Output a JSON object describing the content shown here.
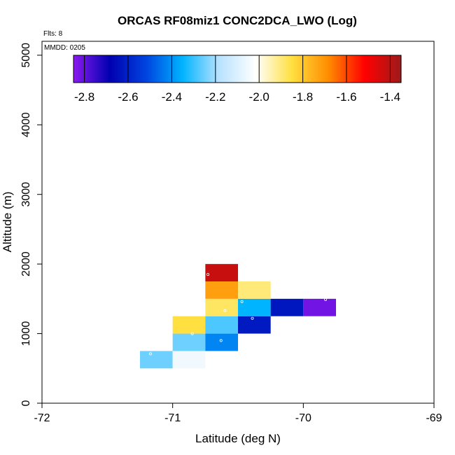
{
  "chart_data": {
    "type": "heatmap",
    "title": "ORCAS RF08miz1 CONC2DCA_LWO (Log)",
    "flights_label": "Flts: 8",
    "date_label": "MMDD: 0205",
    "xlabel": "Latitude (deg N)",
    "ylabel": "Altitude (m)",
    "xlim": [
      -72,
      -69
    ],
    "ylim": [
      0,
      5200
    ],
    "x_ticks": [
      -72,
      -71,
      -70,
      -69
    ],
    "y_ticks": [
      0,
      1000,
      2000,
      3000,
      4000,
      5000
    ],
    "bin_width_deg": 0.25,
    "bin_height_m": 250,
    "colorbar": {
      "range": [
        -2.85,
        -1.35
      ],
      "ticks": [
        -2.8,
        -2.6,
        -2.4,
        -2.2,
        -2.0,
        -1.8,
        -1.6,
        -1.4
      ],
      "tick_labels": [
        "-2.8",
        "-2.6",
        "-2.4",
        "-2.2",
        "-2.0",
        "-1.8",
        "-1.6",
        "-1.4"
      ],
      "colors": [
        "#8B1AF0",
        "#0000B0",
        "#0044E0",
        "#00B4FF",
        "#B8E2FF",
        "#FFFFFF",
        "#FFE040",
        "#FF8C00",
        "#FF0000",
        "#9E1A1A"
      ]
    },
    "cells": [
      {
        "x": -71.125,
        "y": 625,
        "value": -2.25
      },
      {
        "x": -70.875,
        "y": 625,
        "value": -2.05
      },
      {
        "x": -70.875,
        "y": 875,
        "value": -2.25
      },
      {
        "x": -70.625,
        "y": 875,
        "value": -2.42
      },
      {
        "x": -70.875,
        "y": 1125,
        "value": -1.85
      },
      {
        "x": -70.625,
        "y": 1125,
        "value": -2.28
      },
      {
        "x": -70.375,
        "y": 1125,
        "value": -2.62
      },
      {
        "x": -70.625,
        "y": 1375,
        "value": -1.88
      },
      {
        "x": -70.375,
        "y": 1375,
        "value": -2.35
      },
      {
        "x": -70.125,
        "y": 1375,
        "value": -2.63
      },
      {
        "x": -69.875,
        "y": 1375,
        "value": -2.82
      },
      {
        "x": -70.625,
        "y": 1625,
        "value": -1.72
      },
      {
        "x": -70.375,
        "y": 1625,
        "value": -1.9
      },
      {
        "x": -70.625,
        "y": 1875,
        "value": -1.42
      }
    ],
    "points": [
      {
        "x": -71.17,
        "y": 710
      },
      {
        "x": -70.85,
        "y": 1000
      },
      {
        "x": -70.63,
        "y": 900
      },
      {
        "x": -70.6,
        "y": 1330
      },
      {
        "x": -70.47,
        "y": 1460
      },
      {
        "x": -70.39,
        "y": 1220
      },
      {
        "x": -70.73,
        "y": 1850
      },
      {
        "x": -69.83,
        "y": 1490
      }
    ]
  }
}
